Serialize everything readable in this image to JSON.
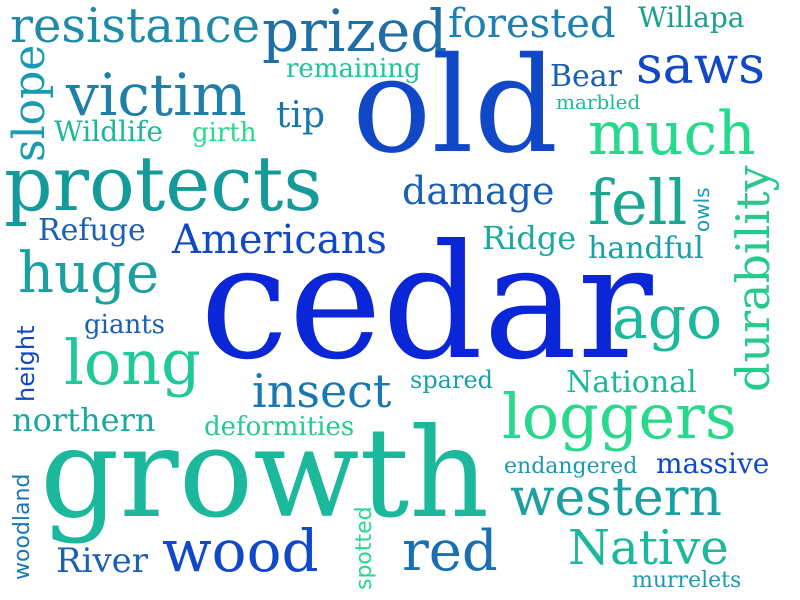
{
  "colors": {
    "deep_blue": "#0a26d6",
    "royal_blue": "#1048c8",
    "mid_blue": "#1a5fb4",
    "steel_blue": "#1f6fa6",
    "teal": "#159a9a",
    "sea_green": "#1bb89c",
    "mint": "#27d98c"
  },
  "words": {
    "cedar": "cedar",
    "growth": "growth",
    "old": "old",
    "protects": "protects",
    "victim": "victim",
    "prized": "prized",
    "resistance": "resistance",
    "forested": "forested",
    "willapa": "Willapa",
    "saws": "saws",
    "remaining": "remaining",
    "bear": "Bear",
    "marbled": "marbled",
    "slope": "slope",
    "wildlife": "Wildlife",
    "girth": "girth",
    "tip": "tip",
    "much": "much",
    "damage": "damage",
    "fell": "fell",
    "durability": "durability",
    "owls": "owls",
    "refuge": "Refuge",
    "americans": "Americans",
    "ridge": "Ridge",
    "handful": "handful",
    "huge": "huge",
    "ago": "ago",
    "giants": "giants",
    "height": "height",
    "long": "long",
    "insect": "insect",
    "spared": "spared",
    "national": "National",
    "northern": "northern",
    "loggers": "loggers",
    "deformities": "deformities",
    "woodland": "woodland",
    "endangered": "endangered",
    "massive": "massive",
    "western": "western",
    "spotted": "spotted",
    "river": "River",
    "wood": "wood",
    "red": "red",
    "native": "Native",
    "murrelets": "murrelets"
  }
}
